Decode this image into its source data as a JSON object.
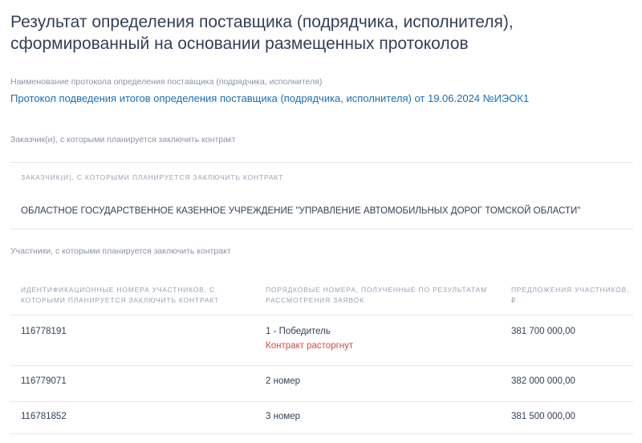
{
  "title": "Результат определения поставщика (подрядчика, исполнителя), сформированный на основании размещенных протоколов",
  "protocol": {
    "label": "Наименование протокола определения поставщика (подрядчика, исполнителя)",
    "link": "Протокол подведения итогов определения поставщика (подрядчика, исполнителя) от 19.06.2024 №ИЭОК1"
  },
  "customers": {
    "label": "Заказчик(и), с которыми планируется заключить контракт",
    "header": "Заказчик(и), с которыми планируется заключить контракт",
    "rows": [
      "ОБЛАСТНОЕ ГОСУДАРСТВЕННОЕ КАЗЕННОЕ УЧРЕЖДЕНИЕ \"УПРАВЛЕНИЕ АВТОМОБИЛЬНЫХ ДОРОГ ТОМСКОЙ ОБЛАСТИ\""
    ]
  },
  "participants": {
    "label": "Участники, с которыми планируется заключить контракт",
    "headers": [
      "Идентификационные номера участников, с которыми планируется заключить контракт",
      "Порядковые номера, полученные по результатам рассмотрения заявок",
      "Предложения участников, ₽"
    ],
    "rows": [
      {
        "id": "116778191",
        "rank": "1 - Победитель",
        "status": "Контракт расторгнут",
        "offer": "381 700 000,00"
      },
      {
        "id": "116779071",
        "rank": "2 номер",
        "offer": "382 000 000,00"
      },
      {
        "id": "116781852",
        "rank": "3 номер",
        "offer": "381 500 000,00"
      }
    ]
  },
  "colors": {
    "link": "#1a6fb5",
    "status_terminated": "#d24a43"
  }
}
